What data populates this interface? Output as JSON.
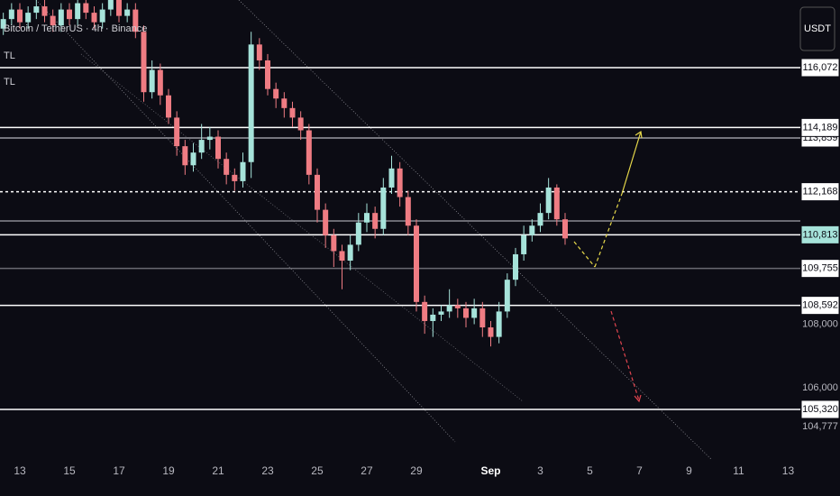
{
  "chart_data": {
    "type": "candlestick",
    "title": "Bitcoin / TetherUS · 4h · Binance",
    "legend_items": [
      "TL",
      "TL"
    ],
    "currency_button": "USDT",
    "up_color": "#a6e3da",
    "down_color": "#ef7c83",
    "x": [
      -16,
      -8,
      0,
      8,
      16,
      24,
      32,
      40,
      48,
      56,
      64,
      72,
      80,
      88,
      96,
      104,
      112,
      120,
      128,
      136,
      144,
      152,
      160,
      168,
      176,
      184,
      192,
      200,
      208,
      216,
      224,
      232,
      240,
      248,
      256,
      264,
      272,
      280,
      288,
      296,
      304,
      312,
      320,
      328,
      336,
      344,
      352,
      360,
      368,
      376,
      384,
      392,
      400,
      408,
      416,
      424,
      432,
      440,
      448,
      456,
      464,
      472,
      480,
      488,
      496,
      504,
      512,
      520,
      528
    ],
    "open": [
      117300,
      117600,
      117900,
      117500,
      117800,
      118000,
      117700,
      117400,
      117900,
      117600,
      118100,
      117800,
      117500,
      117900,
      118200,
      117700,
      117900,
      117200,
      115300,
      116000,
      115200,
      114500,
      113600,
      113000,
      113400,
      113800,
      113900,
      113200,
      112700,
      112500,
      113100,
      116800,
      116300,
      115400,
      115100,
      114800,
      114500,
      114100,
      112700,
      111600,
      110800,
      110300,
      110000,
      110500,
      111200,
      111500,
      111000,
      112300,
      112900,
      112000,
      111100,
      108700,
      108100,
      108300,
      108400,
      108600,
      108500,
      108200,
      108500,
      107900,
      107600,
      108400,
      109400,
      110200,
      110800,
      111100,
      111500,
      112300,
      111300
    ],
    "high": [
      117800,
      118100,
      118100,
      118000,
      118300,
      118200,
      117900,
      118100,
      118100,
      118300,
      118300,
      118000,
      118100,
      118400,
      118400,
      118100,
      118100,
      117400,
      116300,
      116200,
      115400,
      114700,
      113800,
      113700,
      114300,
      114200,
      114100,
      113400,
      112900,
      113400,
      117200,
      117000,
      116500,
      115600,
      115300,
      115000,
      114700,
      114300,
      112900,
      111800,
      111000,
      110500,
      110800,
      111500,
      111800,
      111700,
      112600,
      113300,
      113100,
      112200,
      111300,
      108900,
      108500,
      108600,
      109100,
      108800,
      108700,
      108800,
      108700,
      108100,
      108700,
      109600,
      110400,
      111100,
      111300,
      111800,
      112600,
      112400,
      111500
    ],
    "low": [
      117100,
      117400,
      117300,
      117300,
      117600,
      117500,
      117200,
      117200,
      117400,
      117400,
      117600,
      117300,
      117300,
      117700,
      117500,
      117500,
      117000,
      115000,
      115100,
      114900,
      114300,
      113300,
      112700,
      112800,
      113200,
      113500,
      112900,
      112400,
      112200,
      112300,
      112600,
      116000,
      115200,
      114800,
      114500,
      114200,
      113800,
      112400,
      111200,
      110400,
      109800,
      109100,
      109700,
      110300,
      110900,
      110700,
      110800,
      112100,
      111700,
      110800,
      108400,
      107700,
      107600,
      108100,
      108200,
      108200,
      107900,
      108000,
      107600,
      107300,
      107400,
      108200,
      109200,
      110000,
      110600,
      110900,
      111300,
      111100,
      110500
    ],
    "close": [
      117600,
      117900,
      117500,
      117800,
      118000,
      117700,
      117400,
      117900,
      117600,
      118100,
      117800,
      117500,
      117900,
      118200,
      117700,
      117900,
      117200,
      115300,
      116000,
      115200,
      114500,
      113600,
      113000,
      113400,
      113800,
      113900,
      113200,
      112700,
      112500,
      113100,
      116800,
      116300,
      115400,
      115100,
      114800,
      114500,
      114100,
      112700,
      111600,
      110800,
      110300,
      110000,
      110500,
      111200,
      111500,
      111000,
      112300,
      112900,
      112000,
      111100,
      108700,
      108100,
      108300,
      108400,
      108600,
      108500,
      108200,
      108500,
      107900,
      107600,
      108400,
      109400,
      110200,
      110800,
      111100,
      111500,
      112300,
      111300,
      110700
    ],
    "xlim": [
      -19.2,
      755.8
    ],
    "xticks": [
      {
        "value": 0,
        "label": "13"
      },
      {
        "value": 48,
        "label": "15"
      },
      {
        "value": 96,
        "label": "17"
      },
      {
        "value": 144,
        "label": "19"
      },
      {
        "value": 192,
        "label": "21"
      },
      {
        "value": 240,
        "label": "23"
      },
      {
        "value": 288,
        "label": "25"
      },
      {
        "value": 336,
        "label": "27"
      },
      {
        "value": 384,
        "label": "29"
      },
      {
        "value": 456,
        "label": "Sep"
      },
      {
        "value": 504,
        "label": "3"
      },
      {
        "value": 552,
        "label": "5"
      },
      {
        "value": 600,
        "label": "7"
      },
      {
        "value": 648,
        "label": "9"
      },
      {
        "value": 696,
        "label": "11"
      },
      {
        "value": 744,
        "label": "13"
      }
    ],
    "ylim": [
      103730,
      118200
    ],
    "yticks": [
      {
        "value": 108000,
        "label": "108,000"
      },
      {
        "value": 106000,
        "label": "106,000"
      },
      {
        "value": 104777,
        "label": "104,777"
      }
    ],
    "price_lines": [
      {
        "value": 116072,
        "label": "116,072",
        "color": "#ffffff",
        "style": "solid"
      },
      {
        "value": 113859,
        "label": "113,859",
        "color": "#9a9aa2",
        "style": "solid"
      },
      {
        "value": 114189,
        "label": "114,189",
        "color": "#ffffff",
        "style": "solid"
      },
      {
        "value": 112168,
        "label": "112,168",
        "color": "#ffffff",
        "style": "dotted"
      },
      {
        "value": 111250,
        "color": "#8a8a92",
        "style": "solid"
      },
      {
        "value": 110813,
        "label": "110,813",
        "color": "#ffffff",
        "style": "solid",
        "highlight": true
      },
      {
        "value": 109755,
        "label": "109,755",
        "color": "#6a6a72",
        "style": "solid"
      },
      {
        "value": 108592,
        "label": "108,592",
        "color": "#ffffff",
        "style": "solid"
      },
      {
        "value": 105320,
        "label": "105,320",
        "color": "#ffffff",
        "style": "solid"
      }
    ]
  }
}
